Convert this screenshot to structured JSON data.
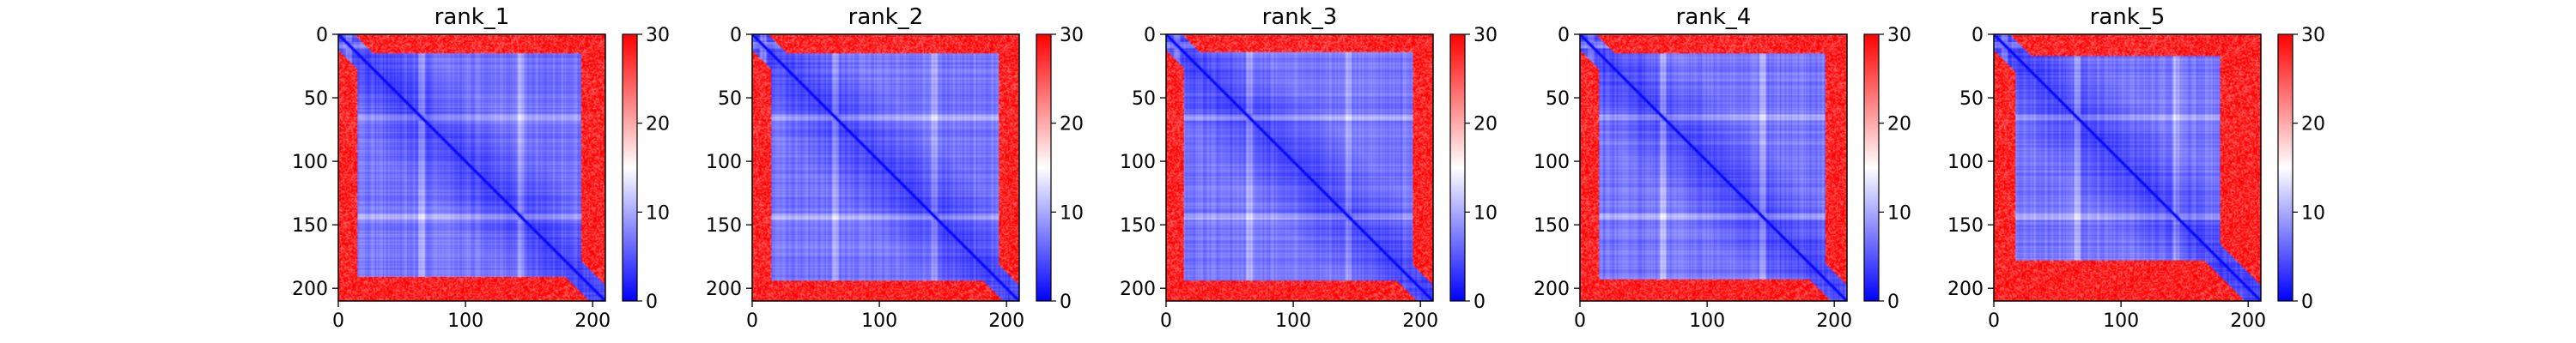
{
  "chart_data": [
    {
      "type": "heatmap",
      "title": "rank_1",
      "x_ticks": [
        "0",
        "100",
        "200"
      ],
      "y_ticks": [
        "0",
        "50",
        "100",
        "150",
        "200"
      ],
      "xlim": [
        0,
        210
      ],
      "ylim": [
        210,
        0
      ],
      "colorbar": {
        "min": 0,
        "max": 30,
        "ticks": [
          "0",
          "10",
          "20",
          "30"
        ],
        "colormap": "bwr"
      },
      "high_bands": [
        8,
        65,
        143
      ],
      "features": {
        "top_red_rows": 15,
        "bottom_red_rows": 20,
        "left_red_cols": 0,
        "right_red_cols": 10
      }
    },
    {
      "type": "heatmap",
      "title": "rank_2",
      "x_ticks": [
        "0",
        "100",
        "200"
      ],
      "y_ticks": [
        "0",
        "50",
        "100",
        "150",
        "200"
      ],
      "xlim": [
        0,
        210
      ],
      "ylim": [
        210,
        0
      ],
      "colorbar": {
        "min": 0,
        "max": 30,
        "ticks": [
          "0",
          "10",
          "20",
          "30"
        ],
        "colormap": "bwr"
      },
      "high_bands": [
        8,
        65,
        143
      ],
      "features": {
        "top_red_rows": 15,
        "bottom_red_rows": 17,
        "left_red_cols": 4,
        "right_red_cols": 8
      }
    },
    {
      "type": "heatmap",
      "title": "rank_3",
      "x_ticks": [
        "0",
        "100",
        "200"
      ],
      "y_ticks": [
        "0",
        "50",
        "100",
        "150",
        "200"
      ],
      "xlim": [
        0,
        210
      ],
      "ylim": [
        210,
        0
      ],
      "colorbar": {
        "min": 0,
        "max": 30,
        "ticks": [
          "0",
          "10",
          "20",
          "30"
        ],
        "colormap": "bwr"
      },
      "high_bands": [
        8,
        65,
        143
      ],
      "features": {
        "top_red_rows": 14,
        "bottom_red_rows": 17,
        "left_red_cols": 3,
        "right_red_cols": 8
      }
    },
    {
      "type": "heatmap",
      "title": "rank_4",
      "x_ticks": [
        "0",
        "100",
        "200"
      ],
      "y_ticks": [
        "0",
        "50",
        "100",
        "150",
        "200"
      ],
      "xlim": [
        0,
        210
      ],
      "ylim": [
        210,
        0
      ],
      "colorbar": {
        "min": 0,
        "max": 30,
        "ticks": [
          "0",
          "10",
          "20",
          "30"
        ],
        "colormap": "bwr"
      },
      "high_bands": [
        8,
        65,
        143
      ],
      "features": {
        "top_red_rows": 15,
        "bottom_red_rows": 18,
        "left_red_cols": 3,
        "right_red_cols": 9
      }
    },
    {
      "type": "heatmap",
      "title": "rank_5",
      "x_ticks": [
        "0",
        "100",
        "200"
      ],
      "y_ticks": [
        "0",
        "50",
        "100",
        "150",
        "200"
      ],
      "xlim": [
        0,
        210
      ],
      "ylim": [
        210,
        0
      ],
      "colorbar": {
        "min": 0,
        "max": 30,
        "ticks": [
          "0",
          "10",
          "20",
          "30"
        ],
        "colormap": "bwr"
      },
      "high_bands": [
        8,
        65,
        143
      ],
      "features": {
        "top_red_rows": 17,
        "bottom_red_rows": 33,
        "left_red_cols": 10,
        "right_red_cols": 12
      }
    }
  ]
}
